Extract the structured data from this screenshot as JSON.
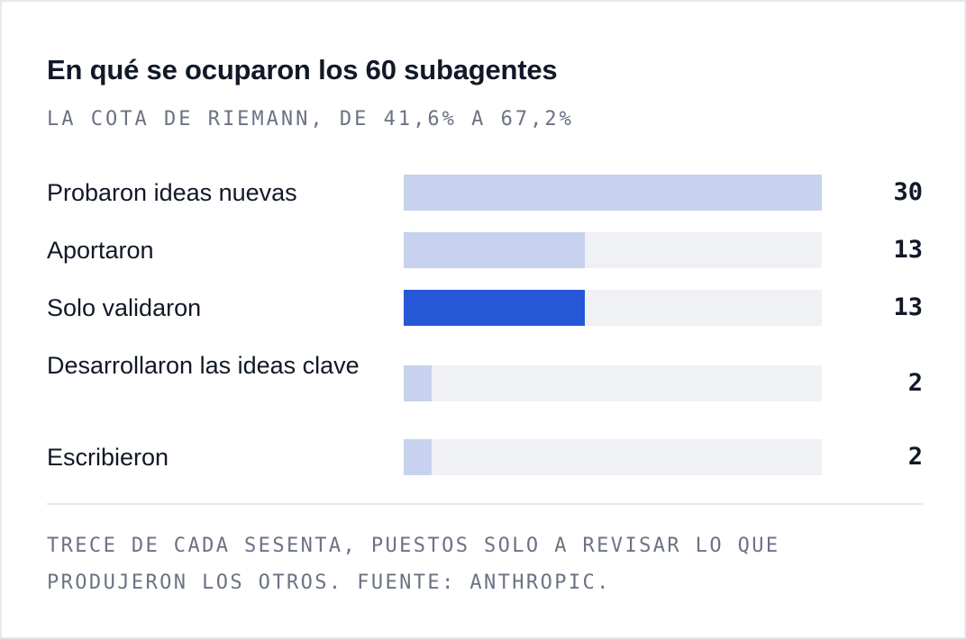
{
  "chart_data": {
    "type": "bar",
    "orientation": "horizontal",
    "title": "En qué se ocuparon los 60 subagentes",
    "subtitle": "LA COTA DE RIEMANN, DE 41,6% A 67,2%",
    "categories": [
      "Probaron ideas nuevas",
      "Aportaron",
      "Solo validaron",
      "Desarrollaron las ideas clave",
      "Escribieron"
    ],
    "values": [
      30,
      13,
      13,
      2,
      2
    ],
    "value_labels": [
      "30",
      "13",
      "13",
      "2",
      "2"
    ],
    "xlim": [
      0,
      30
    ],
    "highlight_index": 2,
    "colors": {
      "bar": "#c7d2ee",
      "highlight": "#2557d6",
      "track": "#f0f1f5"
    },
    "grid": false,
    "legend": "none",
    "footnote": "TRECE DE CADA SESENTA, PUESTOS SOLO A REVISAR LO QUE PRODUJERON LOS OTROS. FUENTE: ANTHROPIC."
  }
}
